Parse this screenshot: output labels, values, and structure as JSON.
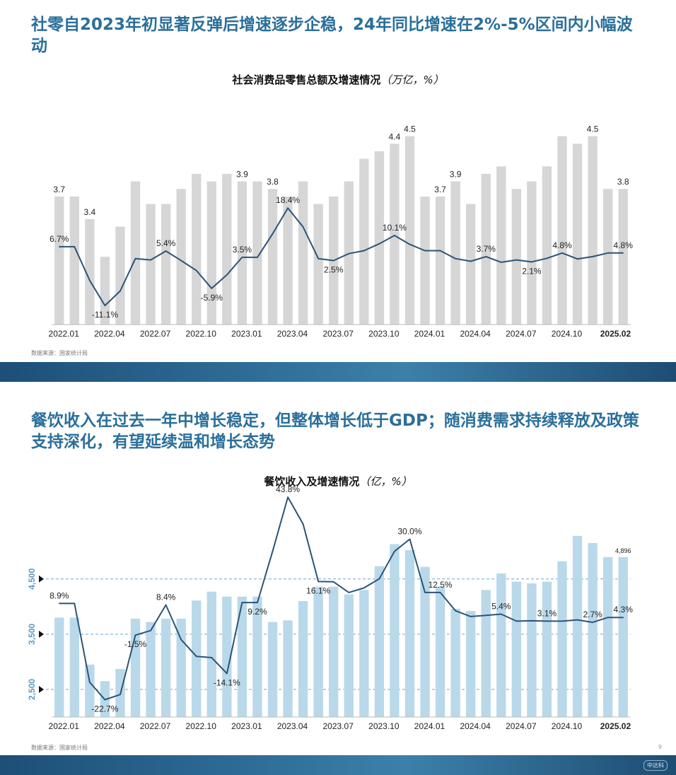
{
  "slide1": {
    "title": "社零自2023年初显著反弹后增速逐步企稳，24年同比增速在2%-5%区间内小幅波动",
    "chart_title": "社会消费品零售总额及增速情况",
    "chart_unit": "（万亿，%）",
    "source": "数据来源：国家统计局"
  },
  "slide2": {
    "title": "餐饮收入在过去一年中增长稳定，但整体增长低于GDP；随消费需求持续释放及政策支持深化，有望延续温和增长态势",
    "chart_title": "餐饮收入及增速情况",
    "chart_unit": "（亿，%）",
    "source": "数据来源：国家统计局",
    "page_number": "9",
    "logo_text": "中达科"
  },
  "chart_data": [
    {
      "type": "bar",
      "title": "社会消费品零售总额及增速情况（万亿，%）",
      "categories": [
        "2022.01",
        "2022.02",
        "2022.03",
        "2022.04",
        "2022.05",
        "2022.06",
        "2022.07",
        "2022.08",
        "2022.09",
        "2022.10",
        "2022.11",
        "2022.12",
        "2023.01",
        "2023.02",
        "2023.03",
        "2023.04",
        "2023.05",
        "2023.06",
        "2023.07",
        "2023.08",
        "2023.09",
        "2023.10",
        "2023.11",
        "2023.12",
        "2024.01",
        "2024.02",
        "2024.03",
        "2024.04",
        "2024.05",
        "2024.06",
        "2024.07",
        "2024.08",
        "2024.09",
        "2024.10",
        "2024.11",
        "2024.12",
        "2025.01",
        "2025.02"
      ],
      "x_tick_labels": [
        "2022.01",
        "2022.04",
        "2022.07",
        "2022.10",
        "2023.01",
        "2023.04",
        "2023.07",
        "2023.10",
        "2024.01",
        "2024.04",
        "2024.07",
        "2024.10",
        "2025.02"
      ],
      "series": [
        {
          "values": [
            3.7,
            3.7,
            3.4,
            2.9,
            3.3,
            3.9,
            3.6,
            3.6,
            3.8,
            4.0,
            3.9,
            4.0,
            3.9,
            3.9,
            3.8,
            3.7,
            3.9,
            3.6,
            3.7,
            3.9,
            4.2,
            4.3,
            4.4,
            4.5,
            3.7,
            3.7,
            3.9,
            3.6,
            4.0,
            4.1,
            3.8,
            3.9,
            4.1,
            4.5,
            4.4,
            4.5,
            3.8,
            3.8
          ]
        },
        {
          "values": [
            6.7,
            6.7,
            -3.5,
            -11.1,
            -6.7,
            3.1,
            2.7,
            5.4,
            2.5,
            -0.5,
            -5.9,
            -1.8,
            3.5,
            3.5,
            10.6,
            18.4,
            12.7,
            3.1,
            2.5,
            4.6,
            5.5,
            7.6,
            10.1,
            7.4,
            5.5,
            5.5,
            3.1,
            2.3,
            3.7,
            2.0,
            2.7,
            2.1,
            3.2,
            4.8,
            3.0,
            3.7,
            4.8,
            4.8
          ]
        }
      ],
      "bar_labels": {
        "0": "3.7",
        "2": "3.4",
        "12": "3.9",
        "14": "3.8",
        "22": "4.4",
        "23": "4.5",
        "25": "3.7",
        "26": "3.9",
        "35": "4.5",
        "37": "3.8"
      },
      "line_labels": [
        {
          "i": 0,
          "label": "6.7%",
          "pos": "above"
        },
        {
          "i": 3,
          "label": "-11.1%",
          "pos": "below"
        },
        {
          "i": 7,
          "label": "5.4%",
          "pos": "above"
        },
        {
          "i": 10,
          "label": "-5.9%",
          "pos": "below"
        },
        {
          "i": 12,
          "label": "3.5%",
          "pos": "above"
        },
        {
          "i": 15,
          "label": "18.4%",
          "pos": "above"
        },
        {
          "i": 18,
          "label": "2.5%",
          "pos": "below"
        },
        {
          "i": 22,
          "label": "10.1%",
          "pos": "above"
        },
        {
          "i": 28,
          "label": "3.7%",
          "pos": "above"
        },
        {
          "i": 31,
          "label": "2.1%",
          "pos": "below"
        },
        {
          "i": 33,
          "label": "4.8%",
          "pos": "above"
        },
        {
          "i": 37,
          "label": "4.8%",
          "pos": "above"
        }
      ],
      "bar_ylim": [
        2.0,
        4.9
      ],
      "line_ylim": [
        -16,
        30
      ],
      "bar_color": "#d6d6d6",
      "line_color": "#2b5478"
    },
    {
      "type": "bar",
      "title": "餐饮收入及增速情况（亿，%）",
      "categories": [
        "2022.01",
        "2022.02",
        "2022.03",
        "2022.04",
        "2022.05",
        "2022.06",
        "2022.07",
        "2022.08",
        "2022.09",
        "2022.10",
        "2022.11",
        "2022.12",
        "2023.01",
        "2023.02",
        "2023.03",
        "2023.04",
        "2023.05",
        "2023.06",
        "2023.07",
        "2023.08",
        "2023.09",
        "2023.10",
        "2023.11",
        "2023.12",
        "2024.01",
        "2024.02",
        "2024.03",
        "2024.04",
        "2024.05",
        "2024.06",
        "2024.07",
        "2024.08",
        "2024.09",
        "2024.10",
        "2024.11",
        "2024.12",
        "2025.01",
        "2025.02"
      ],
      "x_tick_labels": [
        "2022.01",
        "2022.04",
        "2022.07",
        "2022.10",
        "2023.01",
        "2023.04",
        "2023.07",
        "2023.10",
        "2024.01",
        "2024.04",
        "2024.07",
        "2024.10",
        "2025.02"
      ],
      "y_ticks": [
        "2,500",
        "3,500",
        "4,500"
      ],
      "series": [
        {
          "values": [
            3800,
            3800,
            2950,
            2650,
            2870,
            3780,
            3720,
            3780,
            3780,
            4110,
            4270,
            4180,
            4180,
            4180,
            3720,
            3750,
            4100,
            4360,
            4360,
            4220,
            4300,
            4730,
            5130,
            5020,
            4720,
            4360,
            3960,
            3920,
            4300,
            4600,
            4450,
            4420,
            4450,
            4820,
            5280,
            5150,
            4896,
            4896
          ]
        },
        {
          "values": [
            8.9,
            8.9,
            -17.0,
            -22.7,
            -21.0,
            -1.5,
            0.0,
            8.4,
            -3.0,
            -8.5,
            -8.9,
            -14.1,
            9.2,
            9.2,
            26.0,
            43.8,
            35.0,
            16.1,
            16.0,
            12.5,
            14.0,
            17.0,
            26.0,
            30.0,
            12.5,
            12.5,
            6.5,
            4.6,
            5.0,
            5.4,
            3.1,
            3.2,
            3.1,
            3.1,
            3.5,
            2.7,
            4.3,
            4.3
          ]
        }
      ],
      "bar_labels": {
        "37": "4,896"
      },
      "line_labels": [
        {
          "i": 0,
          "label": "8.9%",
          "pos": "above"
        },
        {
          "i": 3,
          "label": "-22.7%",
          "pos": "below"
        },
        {
          "i": 5,
          "label": "-1.5%",
          "pos": "below"
        },
        {
          "i": 7,
          "label": "8.4%",
          "pos": "above"
        },
        {
          "i": 11,
          "label": "-14.1%",
          "pos": "below"
        },
        {
          "i": 13,
          "label": "9.2%",
          "pos": "below"
        },
        {
          "i": 15,
          "label": "43.8%",
          "pos": "above"
        },
        {
          "i": 17,
          "label": "16.1%",
          "pos": "below"
        },
        {
          "i": 23,
          "label": "30.0%",
          "pos": "above"
        },
        {
          "i": 25,
          "label": "12.5%",
          "pos": "above"
        },
        {
          "i": 29,
          "label": "5.4%",
          "pos": "above"
        },
        {
          "i": 32,
          "label": "3.1%",
          "pos": "above"
        },
        {
          "i": 35,
          "label": "2.7%",
          "pos": "above"
        },
        {
          "i": 37,
          "label": "4.3%",
          "pos": "above"
        }
      ],
      "bar_ylim": [
        2000,
        5700
      ],
      "line_ylim": [
        -27,
        48
      ],
      "bar_color": "#b9d9ea",
      "line_color": "#2b5478",
      "grid": "dashed"
    }
  ]
}
